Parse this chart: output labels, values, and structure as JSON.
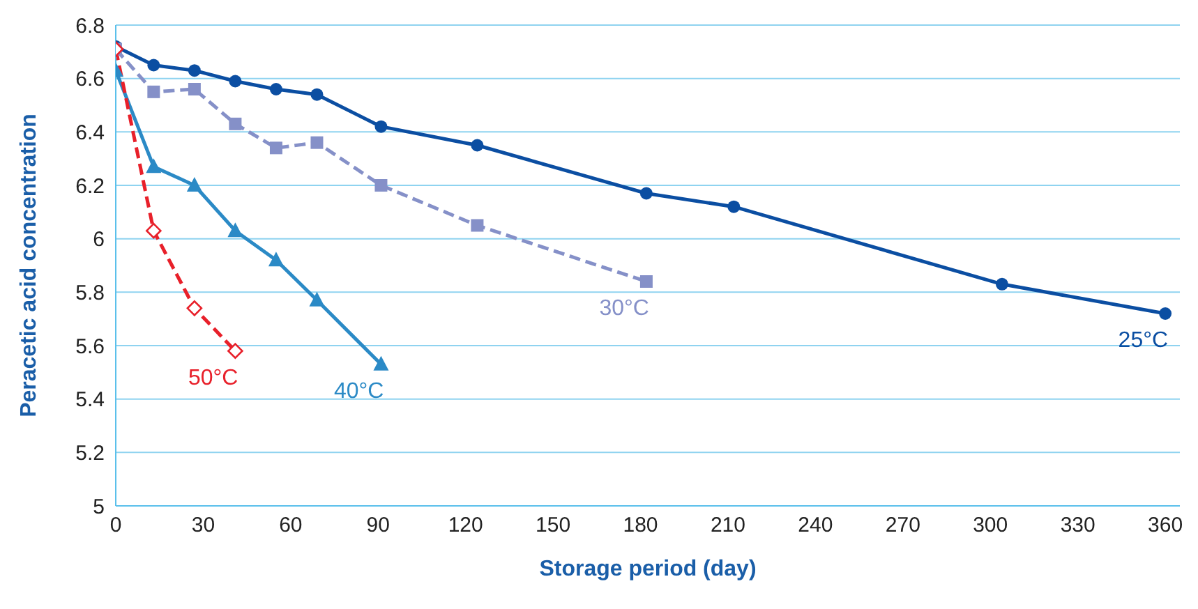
{
  "chart_data": {
    "type": "line",
    "xlabel": "Storage period (day)",
    "ylabel": "Peracetic acid concentration",
    "xlim": [
      0,
      365
    ],
    "xticks": [
      0,
      30,
      60,
      90,
      120,
      150,
      180,
      210,
      240,
      270,
      300,
      330,
      360
    ],
    "ylim": [
      5,
      6.8
    ],
    "yticks": [
      5,
      5.2,
      5.4,
      5.6,
      5.8,
      6,
      6.2,
      6.4,
      6.6,
      6.8
    ],
    "grid": "y",
    "series": [
      {
        "name": "25°C",
        "color": "#0b4ea2",
        "marker": "circle",
        "line_style": "solid",
        "x": [
          0,
          13,
          27,
          41,
          55,
          69,
          91,
          124,
          182,
          212,
          304,
          360
        ],
        "values": [
          6.72,
          6.65,
          6.63,
          6.59,
          6.56,
          6.54,
          6.42,
          6.35,
          6.17,
          6.12,
          5.83,
          5.72
        ]
      },
      {
        "name": "30°C",
        "color": "#8590c8",
        "marker": "square",
        "line_style": "dashed",
        "x": [
          0,
          13,
          27,
          41,
          55,
          69,
          91,
          124,
          182
        ],
        "values": [
          6.71,
          6.55,
          6.56,
          6.43,
          6.34,
          6.36,
          6.2,
          6.05,
          5.84
        ]
      },
      {
        "name": "40°C",
        "color": "#2b8ac6",
        "marker": "triangle",
        "line_style": "solid",
        "x": [
          0,
          13,
          27,
          41,
          55,
          69,
          91
        ],
        "values": [
          6.63,
          6.27,
          6.2,
          6.03,
          5.92,
          5.77,
          5.53
        ]
      },
      {
        "name": "50°C",
        "color": "#e8202a",
        "marker": "diamond",
        "line_style": "dashed",
        "x": [
          0,
          13,
          27,
          41
        ],
        "values": [
          6.71,
          6.03,
          5.74,
          5.58
        ]
      }
    ]
  }
}
